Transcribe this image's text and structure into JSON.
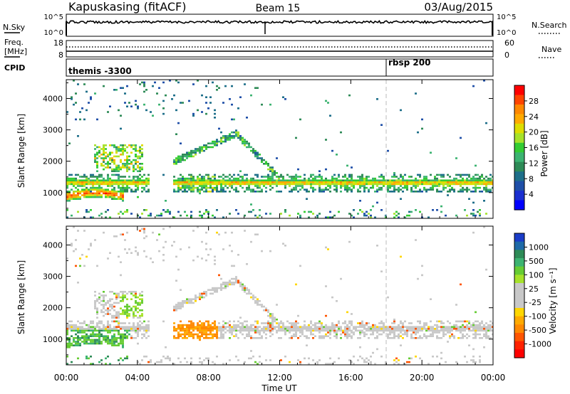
{
  "header": {
    "station": "Kapuskasing (fitACF)",
    "beam": "Beam 15",
    "date": "03/Aug/2015"
  },
  "strip_labels": {
    "nsky": "N.Sky",
    "nsky_ticks": [
      "10^5",
      "10^0"
    ],
    "nsearch": "N.Search",
    "nsearch_ticks": [
      "10^5",
      "10^0"
    ],
    "freq_line1": "Freq.",
    "freq_line2": "[MHz]",
    "freq_ticks": [
      "18",
      "8"
    ],
    "nave": "Nave",
    "nave_ticks": [
      "60",
      "0"
    ],
    "cpid": "CPID",
    "cpid_entries": [
      {
        "text": "themis -3300",
        "start_hour": 0
      },
      {
        "text": "rbsp 200",
        "start_hour": 18
      }
    ]
  },
  "x_axis": {
    "label": "Time UT",
    "ticks": [
      "00:00",
      "04:00",
      "08:00",
      "12:00",
      "16:00",
      "20:00",
      "00:00"
    ],
    "tick_hours": [
      0,
      4,
      8,
      12,
      16,
      20,
      24
    ]
  },
  "chart_data": [
    {
      "type": "heatmap",
      "name": "power",
      "ylabel": "Slant Range [km]",
      "xlim": [
        0,
        24
      ],
      "ylim": [
        180,
        4600
      ],
      "y_ticks": [
        1000,
        2000,
        3000,
        4000
      ],
      "colorbar_label": "Power [dB]",
      "colorbar_ticks": [
        "28",
        "24",
        "20",
        "16",
        "12",
        "8",
        "4"
      ],
      "colorbar_colors": [
        "#ff0000",
        "#ff4400",
        "#ff8800",
        "#ffaa00",
        "#dddd00",
        "#a6e22a",
        "#33cc33",
        "#3cb371",
        "#2e8b57",
        "#1e6f8a",
        "#1f4fa8",
        "#1a2fd0",
        "#0000ff"
      ],
      "echo_bands": [
        {
          "t": [
            0.0,
            24.0
          ],
          "range_center": 1280,
          "label": "main echo band ~1300 km"
        },
        {
          "t": [
            5.5,
            10.5
          ],
          "range_peak": 2850,
          "label": "arc peaking near 09:30"
        }
      ]
    },
    {
      "type": "heatmap",
      "name": "velocity",
      "ylabel": "Slant Range [km]",
      "xlim": [
        0,
        24
      ],
      "ylim": [
        180,
        4600
      ],
      "y_ticks": [
        1000,
        2000,
        3000,
        4000
      ],
      "colorbar_label": "Velocity [m s⁻¹]",
      "colorbar_ticks": [
        "1000",
        "500",
        "100",
        "25",
        "-25",
        "-100",
        "-500",
        "-1000"
      ],
      "colorbar_colors": [
        "#1a3cc8",
        "#1e6aa8",
        "#2e8b57",
        "#3cb371",
        "#66cc33",
        "#a6e22a",
        "#c8c8c8",
        "#c8c8c8",
        "#c8c8c8",
        "#ffd700",
        "#ffaa00",
        "#ff8800",
        "#ff5500",
        "#ff2200",
        "#ff0000"
      ]
    }
  ]
}
